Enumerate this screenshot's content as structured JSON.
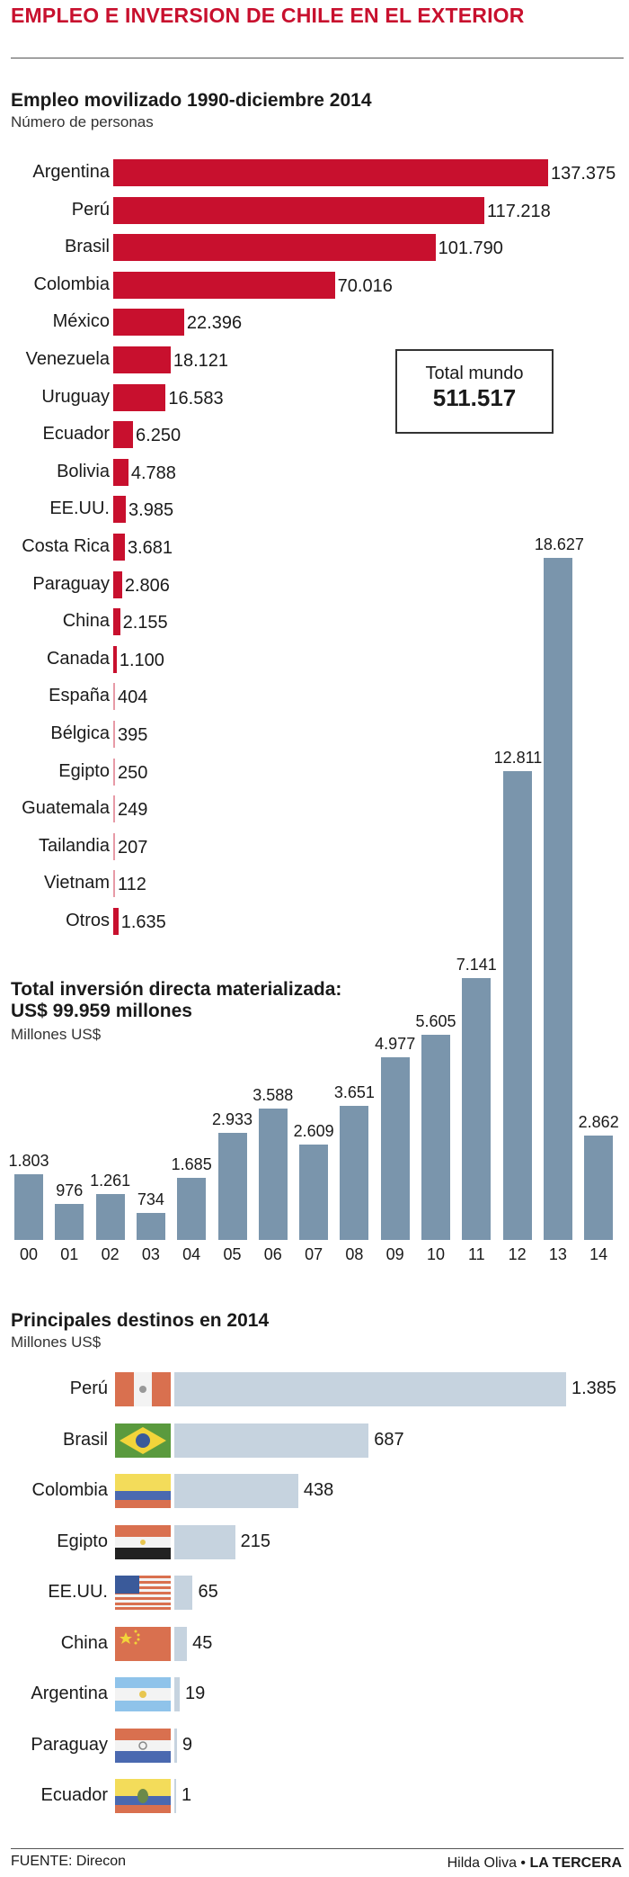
{
  "title": "EMPLEO E INVERSION DE CHILE EN EL EXTERIOR",
  "colors": {
    "accent": "#c8102e",
    "invest_bar": "#7a95ac",
    "dest_bar": "#c6d3df"
  },
  "employment": {
    "title": "Empleo movilizado 1990-diciembre 2014",
    "subtitle": "Número de personas",
    "total_label": "Total mundo",
    "total_value": "511.517"
  },
  "investment": {
    "title_line1": "Total inversión directa materializada:",
    "title_line2": "US$ 99.959 millones",
    "subtitle": "Millones US$"
  },
  "destinations": {
    "title": "Principales destinos en 2014",
    "subtitle": "Millones US$"
  },
  "footer": {
    "source": "FUENTE: Direcon",
    "author": "Hilda Oliva",
    "separator": "•",
    "brand": "LA TERCERA"
  },
  "chart_data": [
    {
      "type": "bar",
      "orientation": "horizontal",
      "title": "Empleo movilizado 1990-diciembre 2014",
      "ylabel": "Número de personas",
      "categories": [
        "Argentina",
        "Perú",
        "Brasil",
        "Colombia",
        "México",
        "Venezuela",
        "Uruguay",
        "Ecuador",
        "Bolivia",
        "EE.UU.",
        "Costa Rica",
        "Paraguay",
        "China",
        "Canada",
        "España",
        "Bélgica",
        "Egipto",
        "Guatemala",
        "Tailandia",
        "Vietnam",
        "Otros"
      ],
      "values": [
        137375,
        117218,
        101790,
        70016,
        22396,
        18121,
        16583,
        6250,
        4788,
        3985,
        3681,
        2806,
        2155,
        1100,
        404,
        395,
        250,
        249,
        207,
        112,
        1635
      ],
      "labels": [
        "137.375",
        "117.218",
        "101.790",
        "70.016",
        "22.396",
        "18.121",
        "16.583",
        "6.250",
        "4.788",
        "3.985",
        "3.681",
        "2.806",
        "2.155",
        "1.100",
        "404",
        "395",
        "250",
        "249",
        "207",
        "112",
        "1.635"
      ]
    },
    {
      "type": "bar",
      "orientation": "vertical",
      "title": "Total inversión directa materializada: US$ 99.959 millones",
      "ylabel": "Millones US$",
      "categories": [
        "00",
        "01",
        "02",
        "03",
        "04",
        "05",
        "06",
        "07",
        "08",
        "09",
        "10",
        "11",
        "12",
        "13",
        "14"
      ],
      "values": [
        1803,
        976,
        1261,
        734,
        1685,
        2933,
        3588,
        2609,
        3651,
        4977,
        5605,
        7141,
        12811,
        18627,
        2862
      ],
      "labels": [
        "1.803",
        "976",
        "1.261",
        "734",
        "1.685",
        "2.933",
        "3.588",
        "2.609",
        "3.651",
        "4.977",
        "5.605",
        "7.141",
        "12.811",
        "18.627",
        "2.862"
      ]
    },
    {
      "type": "bar",
      "orientation": "horizontal",
      "title": "Principales destinos en 2014",
      "ylabel": "Millones US$",
      "categories": [
        "Perú",
        "Brasil",
        "Colombia",
        "Egipto",
        "EE.UU.",
        "China",
        "Argentina",
        "Paraguay",
        "Ecuador"
      ],
      "values": [
        1385,
        687,
        438,
        215,
        65,
        45,
        19,
        9,
        1
      ],
      "labels": [
        "1.385",
        "687",
        "438",
        "215",
        "65",
        "45",
        "19",
        "9",
        "1"
      ],
      "flags": [
        "peru-flag-icon",
        "brazil-flag-icon",
        "colombia-flag-icon",
        "egypt-flag-icon",
        "usa-flag-icon",
        "china-flag-icon",
        "argentina-flag-icon",
        "paraguay-flag-icon",
        "ecuador-flag-icon"
      ]
    }
  ]
}
